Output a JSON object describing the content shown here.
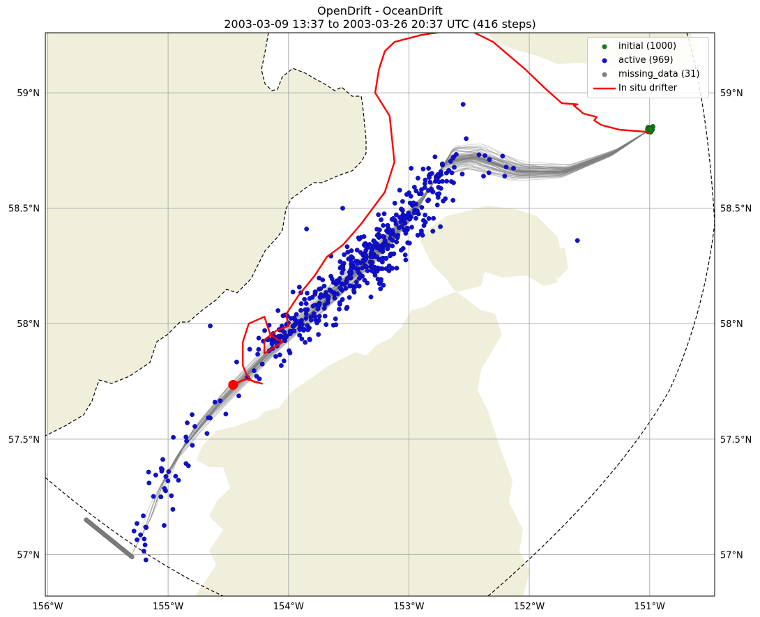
{
  "title": {
    "line1": "OpenDrift - OceanDrift",
    "line2": "2003-03-09 13:37 to 2003-03-26 20:37 UTC (416 steps)"
  },
  "colors": {
    "land": "#efefdb",
    "ocean": "#ffffff",
    "trajectory": "#808080",
    "initial": "#1a7a1a",
    "active": "#1010d0",
    "missing": "#808080",
    "drifter": "#ff0000",
    "grid": "#b0b0b0"
  },
  "legend": {
    "placement": "top-right",
    "items": [
      {
        "label": "initial (1000)",
        "kind": "dot",
        "color": "#1a7a1a"
      },
      {
        "label": "active (969)",
        "kind": "dot",
        "color": "#1010d0"
      },
      {
        "label": "missing_data (31)",
        "kind": "dot",
        "color": "#808080"
      },
      {
        "label": "In situ drifter",
        "kind": "line",
        "color": "#ff0000"
      }
    ]
  },
  "map": {
    "lon_ticks": [
      -156,
      -155,
      -154,
      -153,
      -152,
      -151
    ],
    "lon_labels": [
      "156°W",
      "155°W",
      "154°W",
      "153°W",
      "152°W",
      "151°W"
    ],
    "lat_ticks": [
      59.0,
      58.5,
      58.0,
      57.5,
      57.0
    ],
    "lat_labels": [
      "59°N",
      "58.5°N",
      "58°N",
      "57.5°N",
      "57°N"
    ],
    "lon_range": [
      -156.02,
      -150.46
    ],
    "lat_range": [
      56.82,
      59.26
    ]
  },
  "chart_data": {
    "type": "scatter",
    "title": "OpenDrift - OceanDrift",
    "subtitle": "2003-03-09 13:37 to 2003-03-26 20:37 UTC (416 steps)",
    "grid": true,
    "legend_placement": "top-right",
    "series": [
      {
        "name": "initial (1000)",
        "center": {
          "lon": -151.0,
          "lat": 58.84
        },
        "count": 1000
      },
      {
        "name": "active (969)",
        "count": 969,
        "extent": {
          "lon": [
            -155.45,
            -152.3
          ],
          "lat": [
            57.0,
            58.95
          ]
        },
        "centroid": {
          "lon": -154.05,
          "lat": 58.0
        }
      },
      {
        "name": "missing_data (31)",
        "count": 31,
        "points": [
          [
            -155.68,
            57.15
          ],
          [
            -155.6,
            57.12
          ],
          [
            -155.5,
            57.08
          ],
          [
            -155.4,
            57.03
          ],
          [
            -155.3,
            56.99
          ]
        ]
      },
      {
        "name": "In situ drifter",
        "kind": "line",
        "points": [
          [
            -151.0,
            58.83
          ],
          [
            -151.25,
            58.84
          ],
          [
            -151.4,
            58.86
          ],
          [
            -151.46,
            58.88
          ],
          [
            -151.44,
            58.895
          ],
          [
            -151.55,
            58.91
          ],
          [
            -151.63,
            58.945
          ],
          [
            -151.6,
            58.95
          ],
          [
            -151.73,
            58.955
          ],
          [
            -151.87,
            59.02
          ],
          [
            -152.03,
            59.1
          ],
          [
            -152.3,
            59.22
          ],
          [
            -152.53,
            59.28
          ],
          [
            -152.65,
            59.27
          ],
          [
            -152.9,
            59.25
          ],
          [
            -153.12,
            59.22
          ],
          [
            -153.2,
            59.18
          ],
          [
            -153.25,
            59.1
          ],
          [
            -153.28,
            59.0
          ],
          [
            -153.16,
            58.9
          ],
          [
            -153.12,
            58.7
          ],
          [
            -153.2,
            58.57
          ],
          [
            -153.4,
            58.43
          ],
          [
            -153.55,
            58.34
          ],
          [
            -153.68,
            58.29
          ],
          [
            -153.78,
            58.21
          ],
          [
            -153.92,
            58.12
          ],
          [
            -154.02,
            58.04
          ],
          [
            -154.0,
            57.99
          ],
          [
            -154.1,
            57.97
          ],
          [
            -154.2,
            57.93
          ],
          [
            -154.2,
            57.87
          ],
          [
            -154.05,
            57.92
          ],
          [
            -154.15,
            57.95
          ],
          [
            -154.2,
            58.03
          ],
          [
            -154.33,
            58.0
          ],
          [
            -154.38,
            57.92
          ],
          [
            -154.38,
            57.82
          ],
          [
            -154.35,
            57.78
          ],
          [
            -154.3,
            57.75
          ],
          [
            -154.22,
            57.74
          ],
          [
            -154.35,
            57.76
          ],
          [
            -154.45,
            57.74
          ]
        ],
        "end": {
          "lon": -154.46,
          "lat": 57.735
        }
      }
    ]
  }
}
